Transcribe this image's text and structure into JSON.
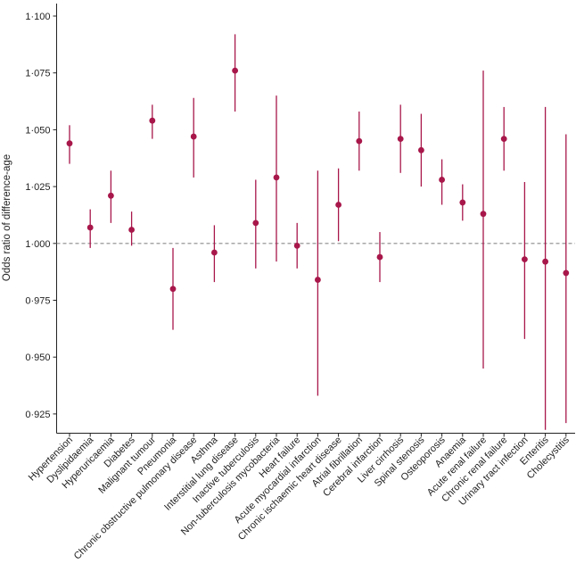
{
  "chart_data": {
    "type": "scatter",
    "title": "",
    "xlabel": "",
    "ylabel": "Odds ratio of difference-age",
    "ylim": [
      0.915,
      1.1
    ],
    "yticks": [
      0.925,
      0.95,
      0.975,
      1.0,
      1.025,
      1.05,
      1.075,
      1.1
    ],
    "ytick_labels": [
      "0·925",
      "0·950",
      "0·975",
      "1·000",
      "1·025",
      "1·050",
      "1·075",
      "1·100"
    ],
    "reference_line": 1.0,
    "grid": false,
    "marker_color": "#a8174a",
    "reference_line_color": "#8a8a8a",
    "categories": [
      "Hypertension",
      "Dyslipidaemia",
      "Hyperuricaemia",
      "Diabetes",
      "Malignant tumour",
      "Pneumonia",
      "Chronic obstructive pulmonary disease",
      "Asthma",
      "Interstitial lung disease",
      "Inactive tuberculosis",
      "Non-tuberculosis mycobacteria",
      "Heart failure",
      "Acute myocardial infarction",
      "Chronic ischaemic heart disease",
      "Atrial fibrillation",
      "Cerebral infarction",
      "Liver cirrhosis",
      "Spinal stenosis",
      "Osteoporosis",
      "Anaemia",
      "Acute renal failure",
      "Chronic renal failure",
      "Urinary tract infection",
      "Enteritis",
      "Cholecystitis"
    ],
    "series": [
      {
        "estimate": [
          1.044,
          1.007,
          1.021,
          1.006,
          1.054,
          0.98,
          1.047,
          0.996,
          1.076,
          1.009,
          1.029,
          0.999,
          0.984,
          1.017,
          1.045,
          0.994,
          1.046,
          1.041,
          1.028,
          1.018,
          1.013,
          1.046,
          0.993,
          0.992,
          0.987
        ],
        "lower": [
          1.035,
          0.998,
          1.009,
          0.999,
          1.046,
          0.962,
          1.029,
          0.983,
          1.058,
          0.989,
          0.992,
          0.989,
          0.933,
          1.001,
          1.032,
          0.983,
          1.031,
          1.025,
          1.017,
          1.01,
          0.945,
          1.032,
          0.958,
          0.918,
          0.921
        ],
        "upper": [
          1.052,
          1.015,
          1.032,
          1.014,
          1.061,
          0.998,
          1.064,
          1.008,
          1.092,
          1.028,
          1.065,
          1.009,
          1.032,
          1.033,
          1.058,
          1.005,
          1.061,
          1.057,
          1.037,
          1.026,
          1.076,
          1.06,
          1.027,
          1.06,
          1.048
        ]
      }
    ]
  }
}
